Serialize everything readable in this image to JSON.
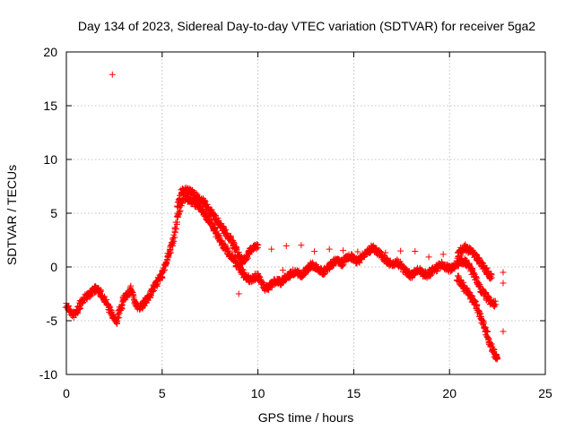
{
  "chart_data": {
    "type": "scatter",
    "title": "Day 134 of 2023, Sidereal Day-to-day VTEC variation (SDTVAR) for receiver 5ga2",
    "xlabel": "GPS time / hours",
    "ylabel": "SDTVAR / TECUs",
    "xlim": [
      0,
      25
    ],
    "ylim": [
      -10,
      20
    ],
    "xticks": [
      "0",
      "5",
      "10",
      "15",
      "20",
      "25"
    ],
    "yticks": [
      "-10",
      "-5",
      "0",
      "5",
      "10",
      "15",
      "20"
    ],
    "grid": true,
    "marker": "+",
    "color": "#ff0000",
    "series": [
      {
        "name": "main",
        "x": [
          0.0,
          0.2,
          0.4,
          0.6,
          0.8,
          1.0,
          1.2,
          1.4,
          1.6,
          1.8,
          2.0,
          2.2,
          2.4,
          2.6,
          2.8,
          3.0,
          3.2,
          3.4,
          3.6,
          3.8,
          4.0,
          4.2,
          4.4,
          4.6,
          4.8,
          5.0,
          5.2,
          5.4,
          5.6,
          5.8,
          6.0,
          6.2,
          6.4,
          6.6,
          6.8,
          7.0,
          7.2,
          7.4,
          7.6,
          7.8,
          8.0,
          8.2,
          8.4,
          8.6,
          8.8,
          9.0,
          9.2,
          9.4,
          9.6,
          9.8,
          10.0,
          10.2,
          10.4,
          10.6,
          10.8,
          11.0,
          11.2,
          11.4,
          11.6,
          11.8,
          12.0,
          12.2,
          12.4,
          12.6,
          12.8,
          13.0,
          13.2,
          13.4,
          13.6,
          13.8,
          14.0,
          14.2,
          14.4,
          14.6,
          14.8,
          15.0,
          15.2,
          15.4,
          15.6,
          15.8,
          16.0,
          16.2,
          16.4,
          16.6,
          16.8,
          17.0,
          17.2,
          17.4,
          17.6,
          17.8,
          18.0,
          18.2,
          18.4,
          18.6,
          18.8,
          19.0,
          19.2,
          19.4,
          19.6,
          19.8,
          20.0,
          20.2,
          20.4,
          20.6,
          20.8,
          21.0,
          21.2,
          21.4,
          21.6,
          21.8,
          22.0,
          22.2,
          22.4
        ],
        "y": [
          -3.5,
          -4.2,
          -4.5,
          -4.0,
          -3.2,
          -2.8,
          -2.5,
          -2.2,
          -2.0,
          -2.5,
          -3.0,
          -3.8,
          -4.5,
          -5.2,
          -4.0,
          -3.0,
          -2.5,
          -2.0,
          -3.5,
          -3.8,
          -3.5,
          -3.0,
          -2.5,
          -1.8,
          -1.2,
          -0.8,
          0.5,
          1.5,
          2.5,
          4.5,
          6.0,
          6.5,
          6.2,
          6.0,
          5.8,
          5.5,
          5.0,
          4.5,
          4.0,
          3.2,
          2.5,
          2.0,
          1.5,
          1.0,
          0.5,
          0.0,
          -0.5,
          -1.0,
          -1.2,
          -1.0,
          -0.8,
          -1.5,
          -2.0,
          -1.8,
          -1.5,
          -1.2,
          -1.5,
          -1.0,
          -0.8,
          -0.5,
          -0.5,
          -0.8,
          -0.5,
          -0.2,
          0.2,
          0.0,
          -0.3,
          -0.5,
          -0.2,
          0.2,
          0.5,
          0.5,
          0.3,
          0.8,
          1.0,
          0.8,
          0.5,
          0.8,
          1.2,
          1.5,
          1.8,
          1.5,
          1.2,
          0.8,
          0.5,
          0.2,
          0.5,
          0.2,
          -0.2,
          -0.5,
          -0.8,
          -0.5,
          -0.3,
          -0.6,
          -0.8,
          -0.5,
          -0.3,
          0.0,
          0.2,
          0.0,
          -0.2,
          0.0,
          0.3,
          0.5,
          0.5,
          0.2,
          -0.5,
          -1.2,
          -2.0,
          -2.5,
          -3.0,
          -3.3,
          -3.5
        ]
      },
      {
        "name": "upper-branch",
        "x": [
          5.8,
          6.0,
          6.2,
          6.4,
          6.6,
          6.8,
          7.0,
          7.2,
          7.4,
          7.6,
          7.8,
          8.0,
          8.2,
          8.4,
          8.6,
          8.8,
          9.0,
          9.2,
          9.4,
          9.6,
          9.8,
          10.0,
          20.4,
          20.6,
          20.8,
          21.0,
          21.2,
          21.4,
          21.6,
          21.8,
          22.0,
          22.2
        ],
        "y": [
          5.5,
          7.0,
          7.2,
          7.0,
          6.8,
          6.5,
          6.2,
          6.0,
          5.5,
          5.0,
          4.5,
          4.0,
          3.5,
          3.0,
          2.5,
          1.8,
          1.0,
          0.5,
          1.0,
          1.5,
          1.8,
          2.0,
          1.0,
          1.5,
          1.8,
          1.6,
          1.3,
          1.0,
          0.5,
          0.0,
          -0.5,
          -1.0
        ]
      },
      {
        "name": "lower-branch",
        "x": [
          20.4,
          20.6,
          20.8,
          21.0,
          21.2,
          21.4,
          21.6,
          21.8,
          22.0,
          22.2,
          22.4,
          22.5
        ],
        "y": [
          -1.0,
          -1.5,
          -2.0,
          -2.5,
          -3.0,
          -3.5,
          -4.5,
          -5.5,
          -6.5,
          -7.5,
          -8.2,
          -8.5
        ]
      },
      {
        "name": "isolated-points",
        "x": [
          2.4,
          9.0,
          11.3,
          22.8,
          22.8,
          22.8
        ],
        "y": [
          17.9,
          -2.5,
          -0.3,
          -0.5,
          -1.5,
          -6.0
        ]
      }
    ]
  }
}
